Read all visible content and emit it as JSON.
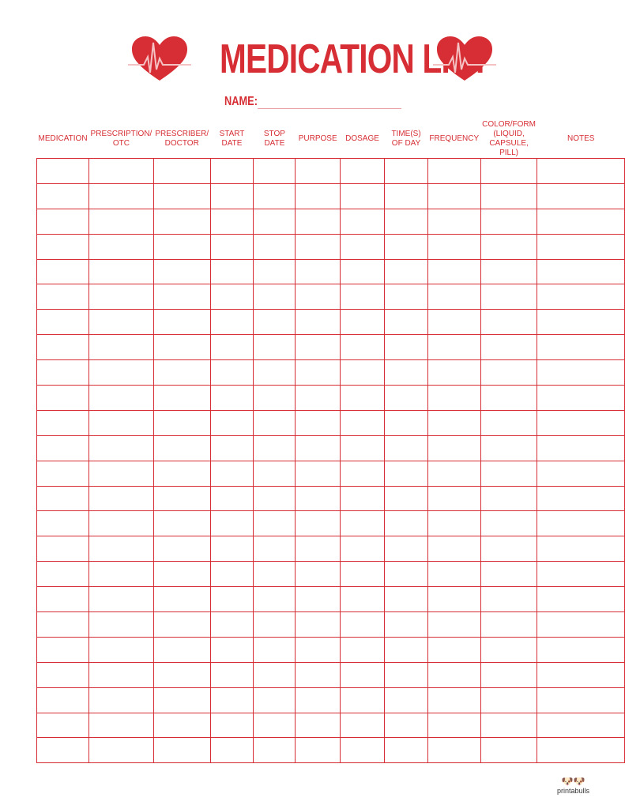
{
  "title": "MEDICATION LIST",
  "name_label": "NAME:",
  "accent_color": "#d62e34",
  "icons": [
    "heart-heartbeat-icon"
  ],
  "columns": [
    "Medication",
    "Prescription/ OTC",
    "Prescriber/ Doctor",
    "Start Date",
    "Stop Date",
    "Purpose",
    "Dosage",
    "Time(s) of Day",
    "Frequency",
    "Color/Form (Liquid, Capsule, Pill)",
    "Notes"
  ],
  "row_count": 24,
  "logo_text": "printabulls"
}
